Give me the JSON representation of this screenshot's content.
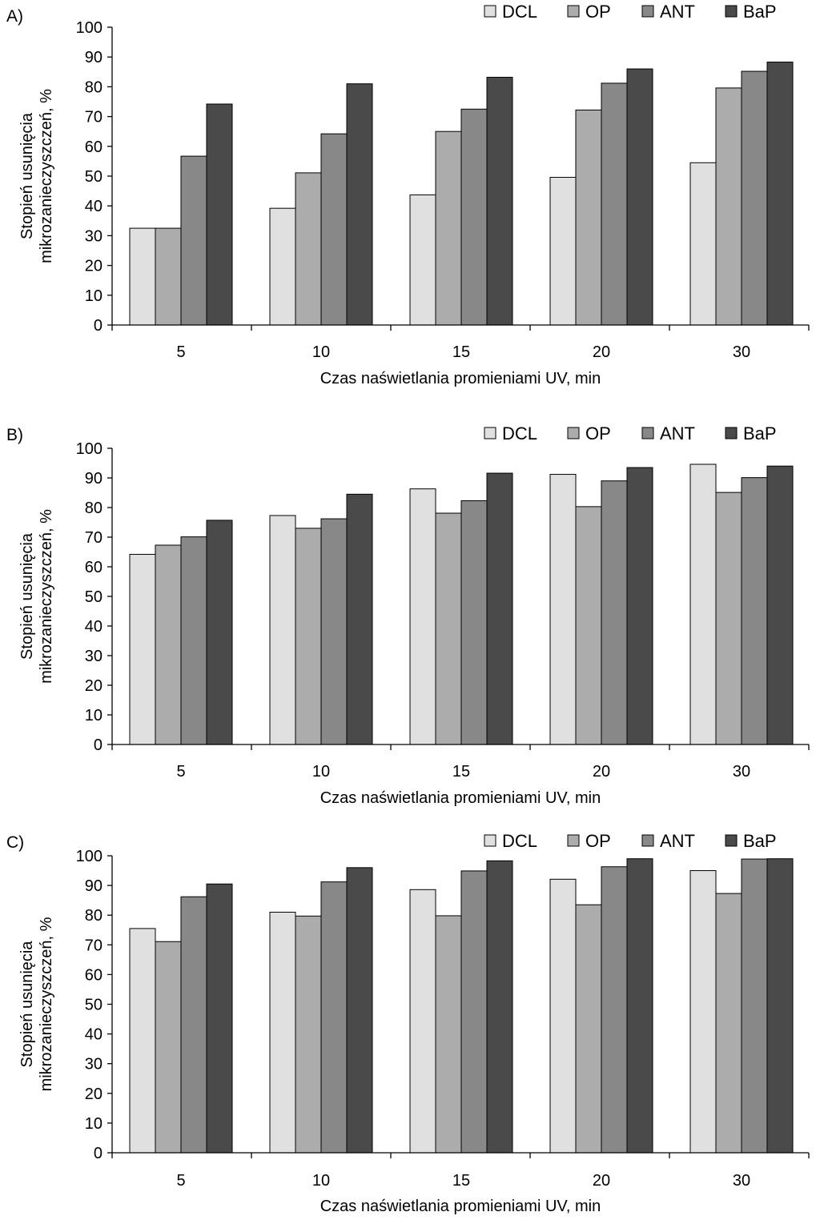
{
  "chart_data": [
    {
      "type": "bar",
      "panel_label": "A)",
      "categories": [
        "5",
        "10",
        "15",
        "20",
        "30"
      ],
      "series": [
        {
          "name": "DCL",
          "color": "#e0e0e0",
          "values": [
            32.5,
            39.2,
            43.7,
            49.6,
            54.5
          ]
        },
        {
          "name": "OP",
          "color": "#acacac",
          "values": [
            32.5,
            51.1,
            65.0,
            72.2,
            79.6
          ]
        },
        {
          "name": "ANT",
          "color": "#888888",
          "values": [
            56.7,
            64.2,
            72.5,
            81.2,
            85.2
          ]
        },
        {
          "name": "BaP",
          "color": "#4a4a4a",
          "values": [
            74.2,
            81.0,
            83.2,
            86.0,
            88.3
          ]
        }
      ],
      "xlabel": "Czas naświetlania promieniami UV, min",
      "ylabel_line1": "Stopień usunięcia",
      "ylabel_line2": "mikrozanieczyszczeń,  %",
      "ylim": [
        0,
        100
      ],
      "yticks": [
        0,
        10,
        20,
        30,
        40,
        50,
        60,
        70,
        80,
        90,
        100
      ],
      "legend_position": "top-right",
      "grid": false
    },
    {
      "type": "bar",
      "panel_label": "B)",
      "categories": [
        "5",
        "10",
        "15",
        "20",
        "30"
      ],
      "series": [
        {
          "name": "DCL",
          "color": "#e0e0e0",
          "values": [
            64.2,
            77.3,
            86.3,
            91.2,
            94.6
          ]
        },
        {
          "name": "OP",
          "color": "#acacac",
          "values": [
            67.3,
            73.0,
            78.1,
            80.3,
            85.1
          ]
        },
        {
          "name": "ANT",
          "color": "#888888",
          "values": [
            70.1,
            76.2,
            82.3,
            89.0,
            90.1
          ]
        },
        {
          "name": "BaP",
          "color": "#4a4a4a",
          "values": [
            75.7,
            84.5,
            91.6,
            93.5,
            94.0
          ]
        }
      ],
      "xlabel": "Czas naświetlania promieniami UV, min",
      "ylabel_line1": "Stopień usunięcia",
      "ylabel_line2": "mikrozanieczyszczeń,  %",
      "ylim": [
        0,
        100
      ],
      "yticks": [
        0,
        10,
        20,
        30,
        40,
        50,
        60,
        70,
        80,
        90,
        100
      ],
      "legend_position": "top-right",
      "grid": false
    },
    {
      "type": "bar",
      "panel_label": "C)",
      "categories": [
        "5",
        "10",
        "15",
        "20",
        "30"
      ],
      "series": [
        {
          "name": "DCL",
          "color": "#e0e0e0",
          "values": [
            75.5,
            81.0,
            88.6,
            92.1,
            95.0
          ]
        },
        {
          "name": "OP",
          "color": "#acacac",
          "values": [
            71.1,
            79.7,
            79.8,
            83.5,
            87.3
          ]
        },
        {
          "name": "ANT",
          "color": "#888888",
          "values": [
            86.2,
            91.2,
            94.9,
            96.3,
            98.9
          ]
        },
        {
          "name": "BaP",
          "color": "#4a4a4a",
          "values": [
            90.5,
            96.0,
            98.3,
            99.0,
            99.0
          ]
        }
      ],
      "xlabel": "Czas naświetlania promieniami UV, min",
      "ylabel_line1": "Stopień usunięcia",
      "ylabel_line2": "mikrozanieczyszczeń,  %",
      "ylim": [
        0,
        100
      ],
      "yticks": [
        0,
        10,
        20,
        30,
        40,
        50,
        60,
        70,
        80,
        90,
        100
      ],
      "legend_position": "top-right",
      "grid": false
    }
  ]
}
